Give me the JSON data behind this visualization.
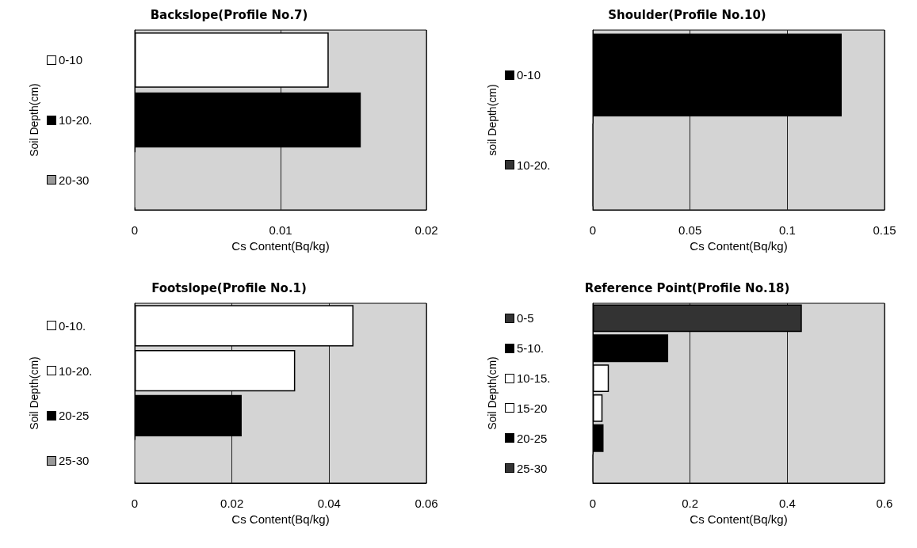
{
  "chart_data": [
    {
      "type": "bar",
      "orientation": "horizontal",
      "title": "Backslope(Profile No.7)",
      "xlabel": "Cs Content(Bq/kg)",
      "ylabel": "Soil Depth(cm)",
      "categories": [
        "0-10",
        "10-20.",
        "20-30"
      ],
      "values": [
        0.0133,
        0.0155,
        0
      ],
      "colors": [
        "#ffffff",
        "#000000",
        "#999999"
      ],
      "xlim": [
        0,
        0.02
      ],
      "xticks": [
        0,
        0.01,
        0.02
      ],
      "grid": "x"
    },
    {
      "type": "bar",
      "orientation": "horizontal",
      "title": "Shoulder(Profile No.10)",
      "xlabel": "Cs Content(Bq/kg)",
      "ylabel": "soil Depth(cm)",
      "categories": [
        "0-10",
        "10-20."
      ],
      "values": [
        0.128,
        0
      ],
      "colors": [
        "#000000",
        "#333333"
      ],
      "xlim": [
        0,
        0.15
      ],
      "xticks": [
        0,
        0.05,
        0.1,
        0.15
      ],
      "grid": "x"
    },
    {
      "type": "bar",
      "orientation": "horizontal",
      "title": "Footslope(Profile No.1)",
      "xlabel": "Cs Content(Bq/kg)",
      "ylabel": "Soil Depth(cm)",
      "categories": [
        "0-10.",
        "10-20.",
        "20-25",
        "25-30"
      ],
      "values": [
        0.045,
        0.033,
        0.022,
        0
      ],
      "colors": [
        "#ffffff",
        "#ffffff",
        "#000000",
        "#999999"
      ],
      "xlim": [
        0,
        0.06
      ],
      "xticks": [
        0,
        0.02,
        0.04,
        0.06
      ],
      "grid": "x"
    },
    {
      "type": "bar",
      "orientation": "horizontal",
      "title": "Reference Point(Profile No.18)",
      "xlabel": "Cs Content(Bq/kg)",
      "ylabel": "Soil Depth(cm)",
      "categories": [
        "0-5",
        "5-10.",
        "10-15.",
        "15-20",
        "20-25",
        "25-30"
      ],
      "values": [
        0.43,
        0.155,
        0.033,
        0.02,
        0.022,
        0
      ],
      "colors": [
        "#333333",
        "#000000",
        "#ffffff",
        "#ffffff",
        "#000000",
        "#333333"
      ],
      "xlim": [
        0,
        0.6
      ],
      "xticks": [
        0,
        0.2,
        0.4,
        0.6
      ],
      "grid": "x"
    }
  ]
}
